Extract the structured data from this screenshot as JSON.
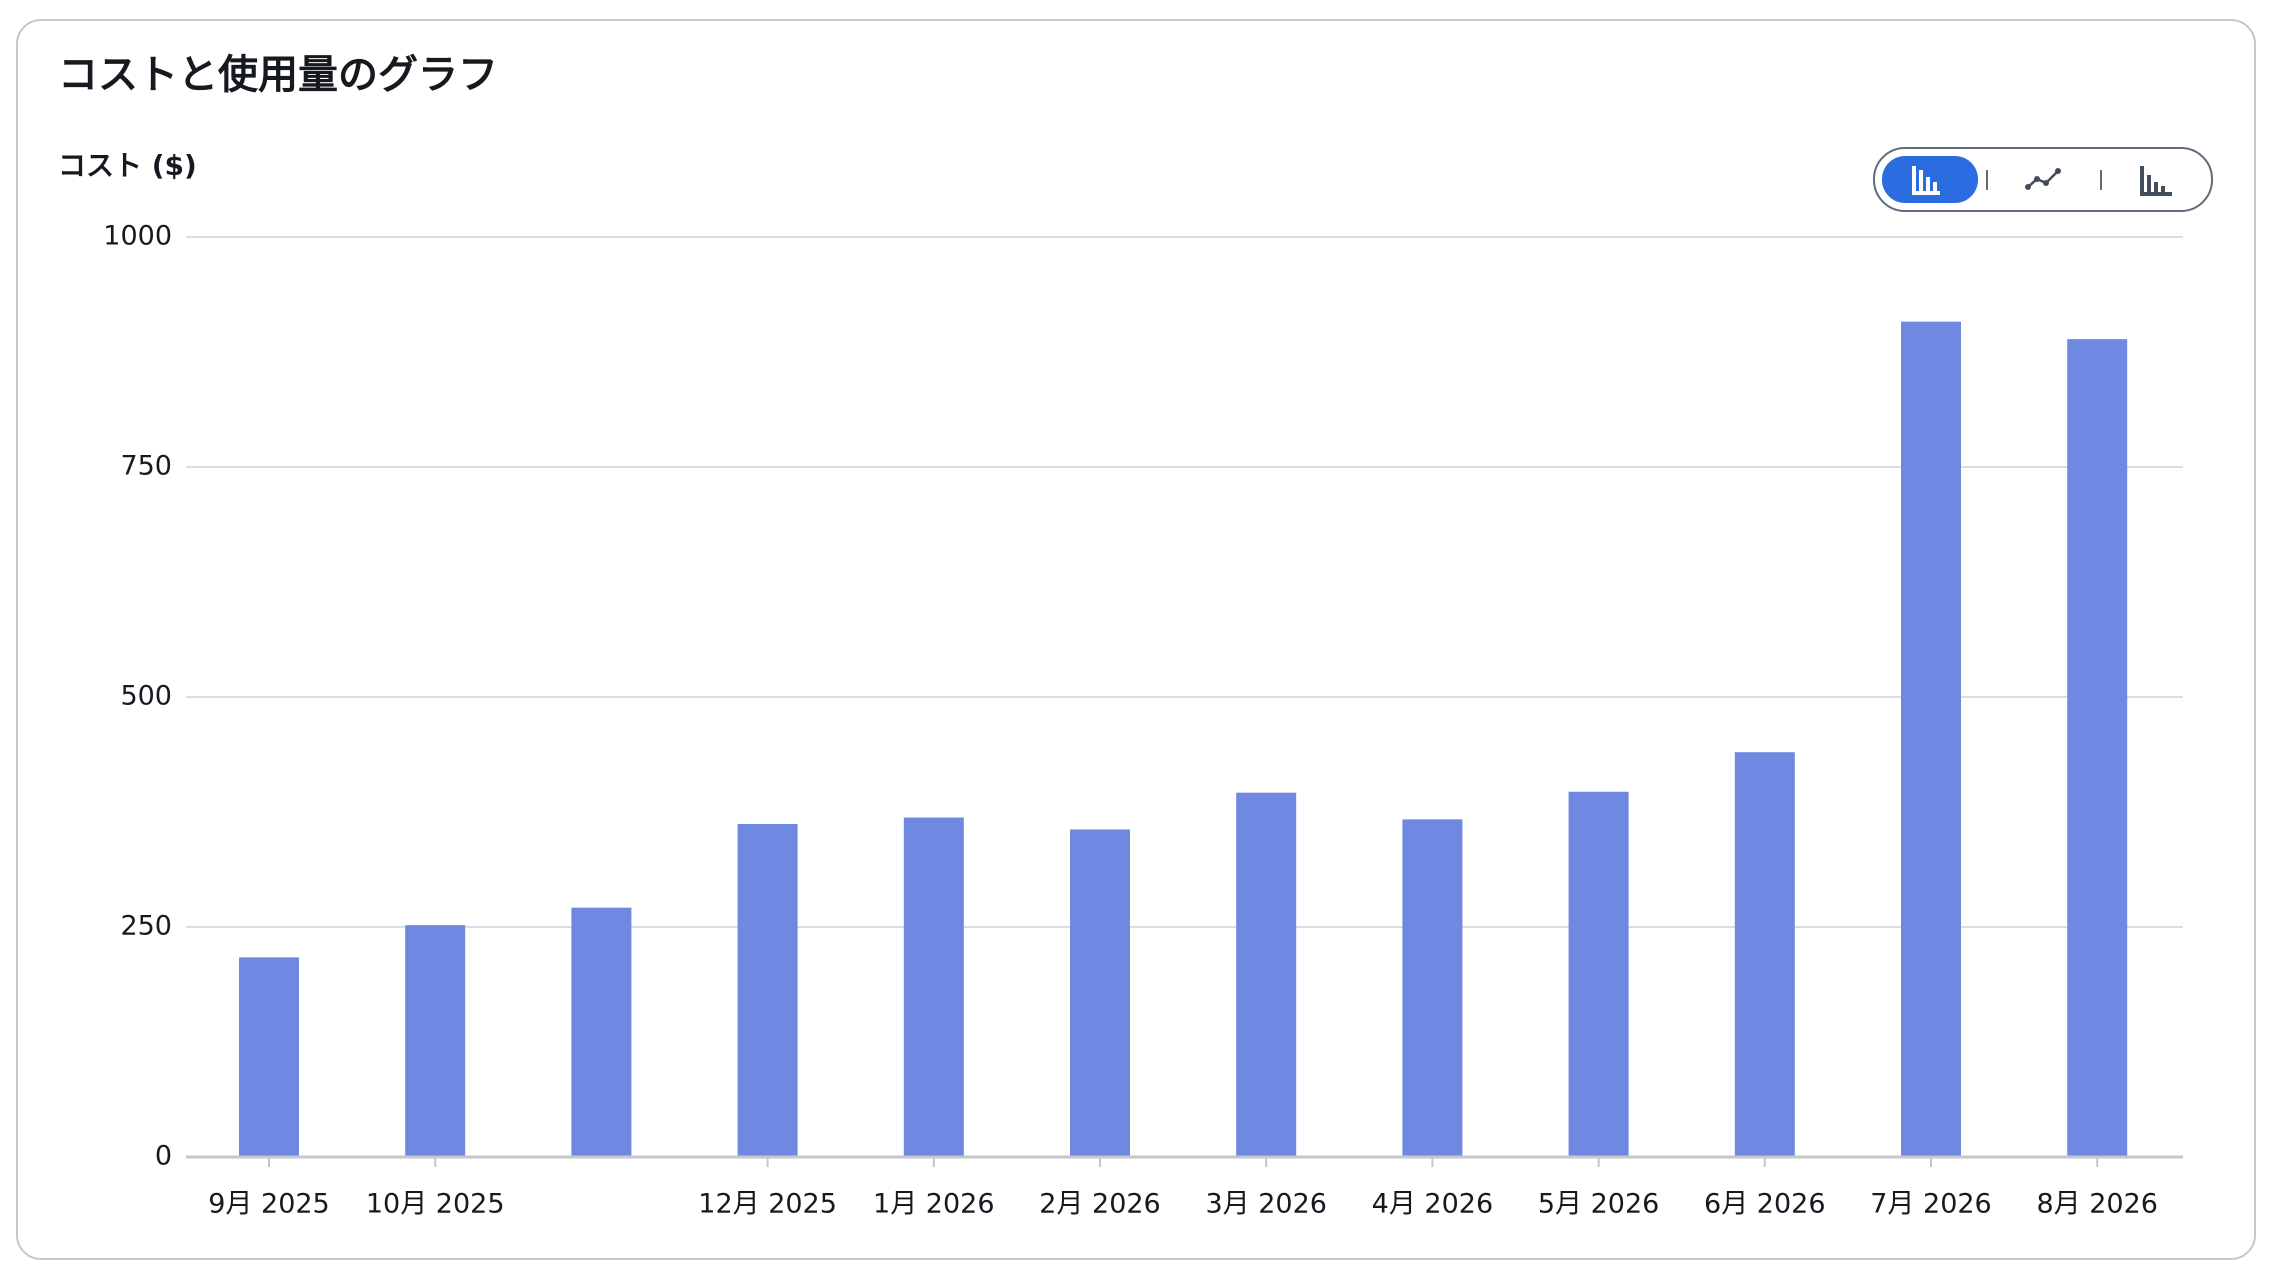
{
  "chart_data": {
    "type": "bar",
    "title": "コストと使用量のグラフ",
    "y_label": "コスト ($)",
    "categories": [
      "9月 2025",
      "10月 2025",
      null,
      "12月 2025",
      "1月 2026",
      "2月 2026",
      "3月 2026",
      "4月 2026",
      "5月 2026",
      "6月 2026",
      "7月 2026",
      "8月 2026"
    ],
    "values": [
      217,
      252,
      271,
      362,
      369,
      356,
      396,
      367,
      397,
      440,
      908,
      889
    ],
    "color": "#6f89e2",
    "ylim": [
      0,
      1000
    ],
    "yticks": [
      0,
      250,
      500,
      750,
      1000
    ],
    "grid": true
  }
}
